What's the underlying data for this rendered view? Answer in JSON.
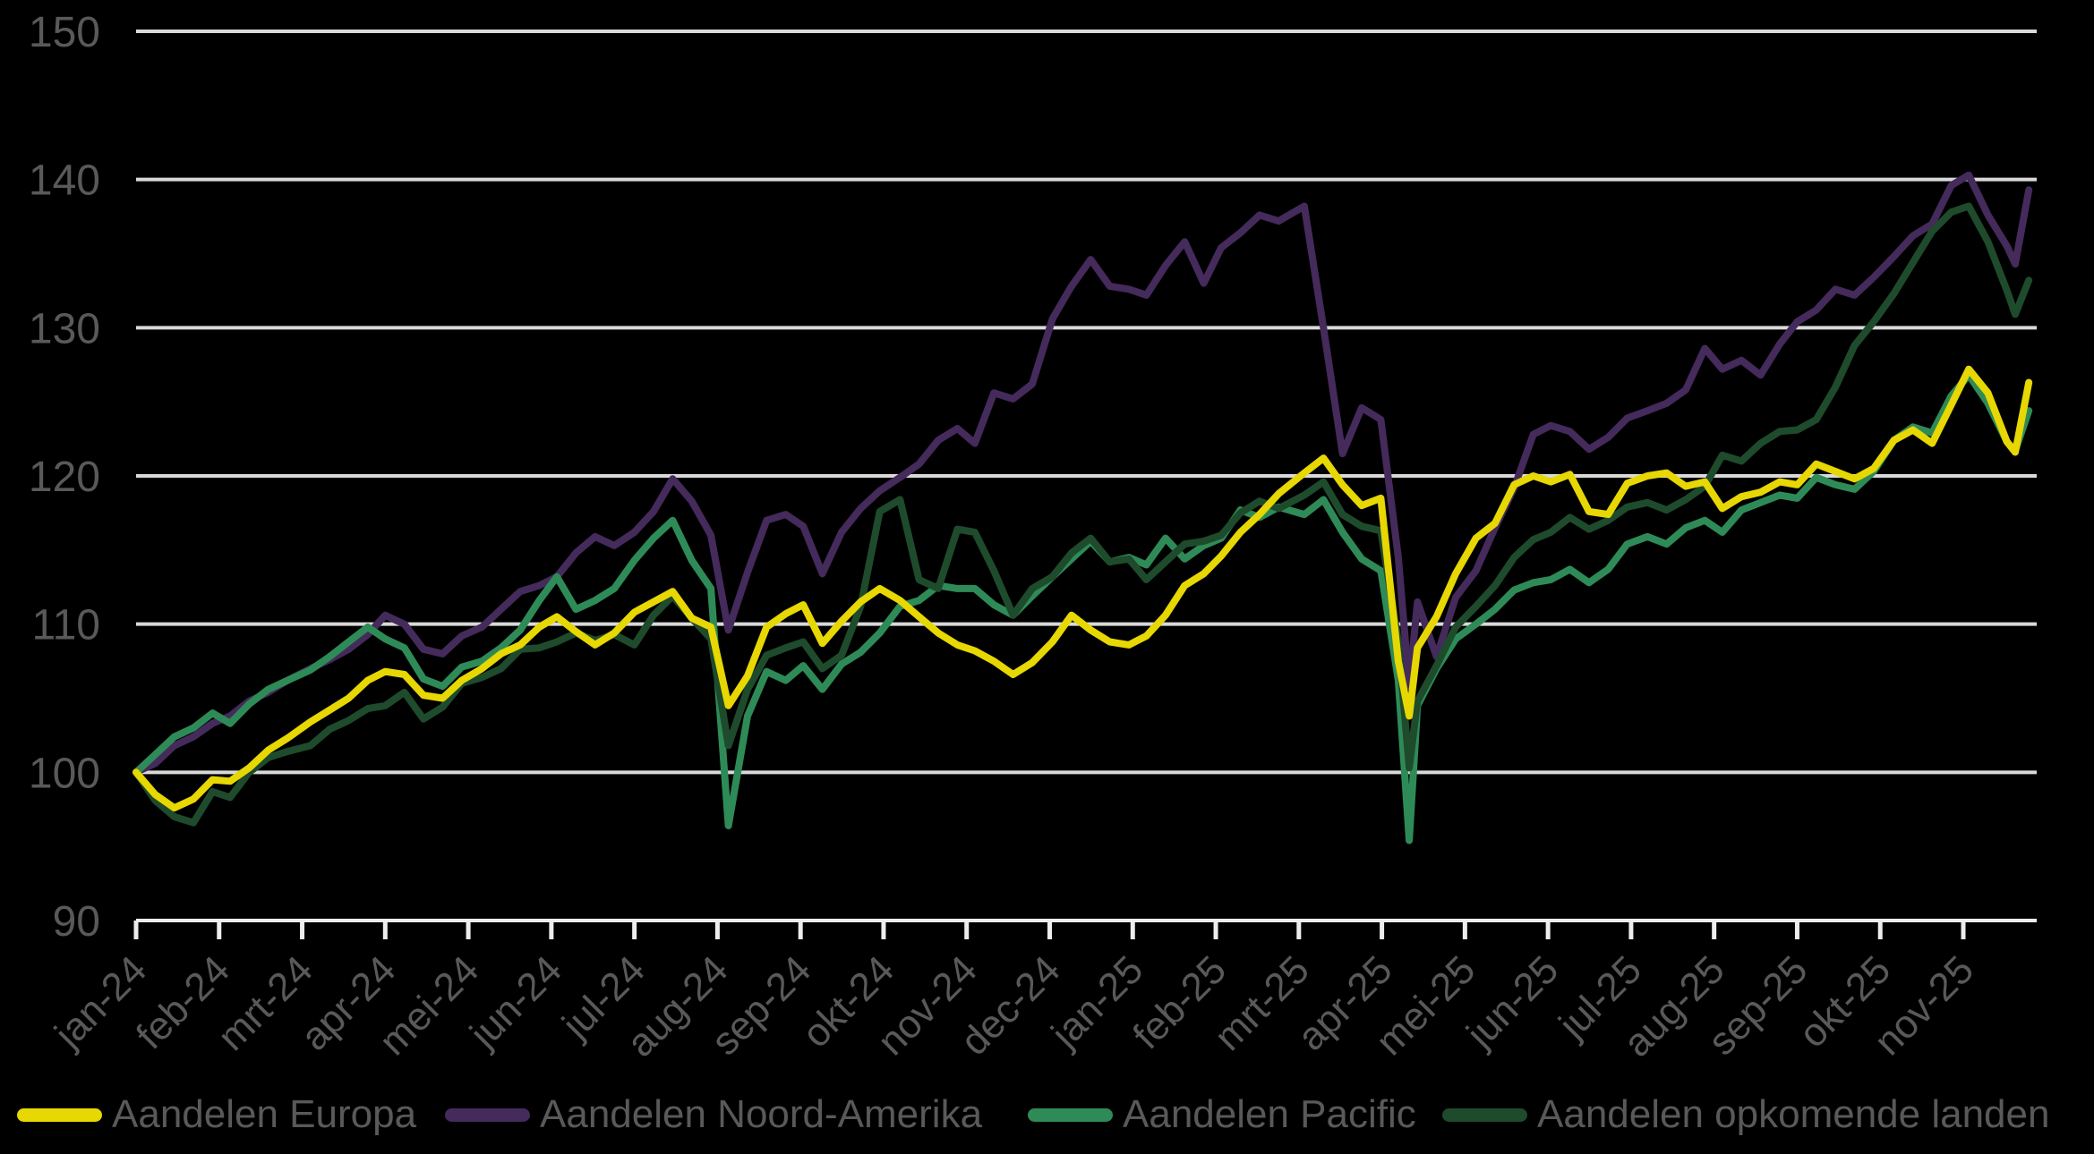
{
  "chart_data": {
    "type": "line",
    "title": "",
    "background_color": "#000000",
    "grid_color": "#D9D9D9",
    "axis_color": "#EDEDED",
    "tick_label_color": "#595959",
    "grid": "horizontal-only",
    "legend_position": "bottom",
    "ylim": [
      90,
      150
    ],
    "yticks": [
      90,
      100,
      110,
      120,
      130,
      140,
      150
    ],
    "ytick_labels": [
      "90",
      "100",
      "110",
      "120",
      "130",
      "140",
      "150"
    ],
    "x_tick_labels": [
      "jan-24",
      "feb-24",
      "mrt-24",
      "apr-24",
      "mei-24",
      "jun-24",
      "jul-24",
      "aug-24",
      "sep-24",
      "okt-24",
      "nov-24",
      "dec-24",
      "jan-25",
      "feb-25",
      "mrt-25",
      "apr-25",
      "mei-25",
      "jun-25",
      "jul-25",
      "aug-25",
      "sep-25",
      "okt-25",
      "nov-25"
    ],
    "dates": [
      "2024-01-01",
      "2024-01-08",
      "2024-01-15",
      "2024-01-22",
      "2024-01-29",
      "2024-02-05",
      "2024-02-12",
      "2024-02-19",
      "2024-02-26",
      "2024-03-04",
      "2024-03-11",
      "2024-03-18",
      "2024-03-25",
      "2024-04-01",
      "2024-04-08",
      "2024-04-15",
      "2024-04-22",
      "2024-04-29",
      "2024-05-06",
      "2024-05-13",
      "2024-05-20",
      "2024-05-27",
      "2024-06-03",
      "2024-06-10",
      "2024-06-17",
      "2024-06-24",
      "2024-07-01",
      "2024-07-08",
      "2024-07-15",
      "2024-07-22",
      "2024-07-29",
      "2024-08-05",
      "2024-08-12",
      "2024-08-19",
      "2024-08-26",
      "2024-09-02",
      "2024-09-09",
      "2024-09-16",
      "2024-09-23",
      "2024-09-30",
      "2024-10-07",
      "2024-10-14",
      "2024-10-21",
      "2024-10-28",
      "2024-11-04",
      "2024-11-11",
      "2024-11-18",
      "2024-11-25",
      "2024-12-02",
      "2024-12-09",
      "2024-12-16",
      "2024-12-23",
      "2024-12-30",
      "2025-01-06",
      "2025-01-13",
      "2025-01-20",
      "2025-01-27",
      "2025-02-03",
      "2025-02-10",
      "2025-02-17",
      "2025-02-24",
      "2025-03-03",
      "2025-03-10",
      "2025-03-17",
      "2025-03-24",
      "2025-03-31",
      "2025-04-07",
      "2025-04-11",
      "2025-04-14",
      "2025-04-21",
      "2025-04-28",
      "2025-05-05",
      "2025-05-12",
      "2025-05-19",
      "2025-05-26",
      "2025-06-02",
      "2025-06-09",
      "2025-06-16",
      "2025-06-23",
      "2025-06-30",
      "2025-07-07",
      "2025-07-14",
      "2025-07-21",
      "2025-07-28",
      "2025-08-04",
      "2025-08-11",
      "2025-08-18",
      "2025-08-25",
      "2025-09-01",
      "2025-09-08",
      "2025-09-15",
      "2025-09-22",
      "2025-09-29",
      "2025-10-06",
      "2025-10-13",
      "2025-10-20",
      "2025-10-27",
      "2025-11-03",
      "2025-11-10",
      "2025-11-17",
      "2025-11-20",
      "2025-11-25"
    ],
    "series": [
      {
        "name": "Aandelen Europa",
        "color": "#E7D703",
        "values": [
          100.0,
          98.5,
          97.6,
          98.2,
          99.5,
          99.4,
          100.3,
          101.5,
          102.3,
          103.4,
          104.2,
          105.0,
          106.2,
          106.8,
          106.6,
          105.2,
          105.0,
          106.2,
          107.0,
          108.0,
          108.6,
          109.8,
          110.5,
          109.5,
          108.6,
          109.4,
          110.8,
          111.5,
          112.2,
          110.4,
          109.8,
          104.5,
          106.5,
          109.8,
          110.7,
          111.3,
          108.7,
          110.2,
          111.5,
          112.4,
          111.6,
          110.5,
          109.4,
          108.6,
          108.2,
          107.5,
          106.6,
          107.4,
          108.8,
          110.6,
          109.6,
          108.8,
          108.6,
          109.2,
          110.6,
          112.6,
          113.4,
          114.6,
          116.2,
          117.4,
          118.8,
          120.2,
          121.2,
          119.4,
          118.0,
          118.5,
          107.5,
          103.8,
          108.4,
          110.5,
          113.4,
          115.8,
          116.8,
          119.4,
          120.0,
          119.6,
          120.1,
          117.6,
          117.4,
          119.5,
          120.0,
          120.2,
          119.3,
          119.6,
          117.8,
          118.6,
          118.9,
          119.6,
          119.4,
          120.8,
          120.3,
          119.8,
          120.5,
          122.4,
          123.1,
          122.2,
          124.8,
          127.2,
          125.6,
          122.3,
          121.6,
          126.3
        ]
      },
      {
        "name": "Aandelen Noord-Amerika",
        "color": "#452A5C",
        "values": [
          100.0,
          100.6,
          101.8,
          102.4,
          103.3,
          103.8,
          104.8,
          105.4,
          106.2,
          107.0,
          107.6,
          108.3,
          109.3,
          110.6,
          110.0,
          108.3,
          108.0,
          109.2,
          109.8,
          111.0,
          112.2,
          112.6,
          113.2,
          114.8,
          115.9,
          115.3,
          116.2,
          117.6,
          119.8,
          118.3,
          116.0,
          109.6,
          113.5,
          117.0,
          117.4,
          116.6,
          113.4,
          116.2,
          117.8,
          119.0,
          119.9,
          120.8,
          122.4,
          123.2,
          122.2,
          125.6,
          125.2,
          126.2,
          130.6,
          132.8,
          134.6,
          132.8,
          132.6,
          132.2,
          134.2,
          135.8,
          133.0,
          135.4,
          136.4,
          137.6,
          137.2,
          138.2,
          130.0,
          121.5,
          124.6,
          123.8,
          114.5,
          105.8,
          111.5,
          107.8,
          111.8,
          113.6,
          116.5,
          119.2,
          122.8,
          123.4,
          123.0,
          121.8,
          122.6,
          123.9,
          124.4,
          124.9,
          125.8,
          128.6,
          127.2,
          127.8,
          126.8,
          128.9,
          130.4,
          131.2,
          132.6,
          132.2,
          133.4,
          134.8,
          136.2,
          137.0,
          139.6,
          140.3,
          137.6,
          135.5,
          134.3,
          139.3
        ]
      },
      {
        "name": "Aandelen Pacific",
        "color": "#2E8B57",
        "values": [
          100.0,
          101.2,
          102.4,
          103.0,
          104.0,
          103.3,
          104.6,
          105.6,
          106.2,
          106.9,
          107.8,
          108.8,
          109.8,
          109.0,
          108.4,
          106.3,
          105.8,
          107.1,
          107.5,
          108.4,
          109.6,
          111.6,
          113.2,
          111.0,
          111.6,
          112.4,
          114.3,
          115.8,
          117.0,
          114.3,
          112.4,
          96.4,
          103.8,
          106.8,
          106.2,
          107.2,
          105.6,
          107.3,
          108.1,
          109.4,
          111.2,
          111.6,
          112.6,
          112.4,
          112.4,
          111.3,
          110.6,
          111.9,
          113.2,
          114.4,
          115.6,
          114.2,
          114.5,
          114.0,
          115.8,
          114.4,
          115.3,
          115.8,
          117.7,
          117.2,
          117.9,
          117.4,
          118.4,
          116.2,
          114.4,
          113.6,
          106.2,
          95.4,
          104.5,
          107.0,
          109.0,
          110.0,
          111.0,
          112.3,
          112.8,
          113.0,
          113.7,
          112.8,
          113.7,
          115.4,
          115.9,
          115.4,
          116.5,
          117.0,
          116.2,
          117.7,
          118.2,
          118.7,
          118.5,
          119.9,
          119.4,
          119.1,
          120.3,
          122.4,
          123.3,
          122.9,
          125.4,
          126.8,
          124.9,
          122.3,
          121.7,
          124.4
        ]
      },
      {
        "name": "Aandelen opkomende landen",
        "color": "#1E4B2C",
        "values": [
          100.0,
          98.1,
          97.0,
          96.6,
          98.7,
          98.3,
          100.0,
          101.0,
          101.4,
          101.8,
          102.9,
          103.5,
          104.3,
          104.5,
          105.4,
          103.6,
          104.4,
          106.0,
          106.4,
          107.0,
          108.3,
          108.4,
          108.8,
          109.4,
          108.9,
          109.3,
          108.6,
          110.6,
          111.9,
          110.4,
          109.0,
          101.8,
          105.6,
          107.9,
          108.4,
          108.8,
          107.0,
          107.9,
          111.2,
          117.6,
          118.4,
          113.0,
          112.4,
          116.4,
          116.2,
          113.6,
          110.6,
          112.4,
          113.2,
          114.8,
          115.8,
          114.2,
          114.4,
          113.0,
          114.2,
          115.4,
          115.6,
          116.0,
          117.5,
          118.3,
          117.8,
          118.7,
          119.6,
          117.4,
          116.6,
          116.3,
          108.8,
          100.3,
          104.8,
          107.2,
          109.8,
          111.2,
          112.6,
          114.5,
          115.7,
          116.2,
          117.2,
          116.4,
          117.0,
          117.9,
          118.2,
          117.7,
          118.4,
          119.3,
          121.4,
          121.0,
          122.2,
          123.0,
          123.1,
          123.8,
          126.0,
          128.8,
          130.4,
          132.3,
          134.4,
          136.5,
          137.8,
          138.2,
          135.8,
          132.5,
          130.9,
          133.2
        ]
      }
    ]
  }
}
